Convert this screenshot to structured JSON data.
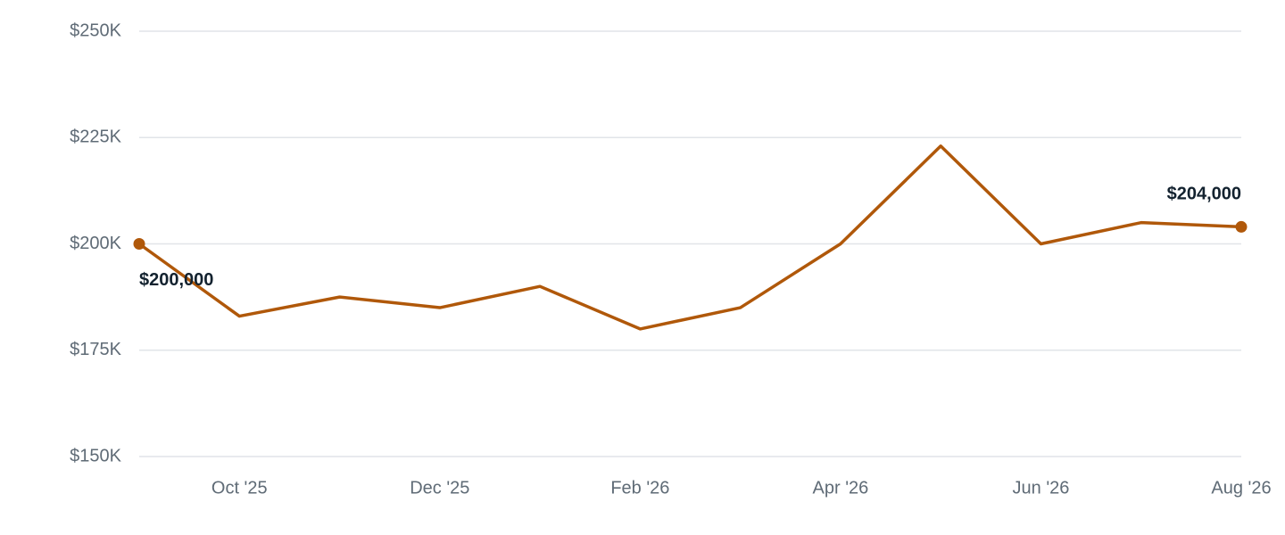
{
  "chart_data": {
    "type": "line",
    "categories": [
      null,
      "Oct '25",
      null,
      "Dec '25",
      null,
      "Feb '26",
      null,
      "Apr '26",
      null,
      "Jun '26",
      null,
      "Aug '26"
    ],
    "series": [
      {
        "color": "#b0580a",
        "values": [
          200000,
          183000,
          187500,
          185000,
          190000,
          180000,
          185000,
          200000,
          223000,
          200000,
          205000,
          204000
        ],
        "value_labels": [
          "$200,000",
          null,
          null,
          null,
          null,
          null,
          null,
          null,
          null,
          null,
          null,
          "$204,000"
        ]
      }
    ],
    "ylim": [
      150000,
      250000
    ],
    "yticks": [
      {
        "value": 150000,
        "label": "$150K"
      },
      {
        "value": 175000,
        "label": "$175K"
      },
      {
        "value": 200000,
        "label": "$200K"
      },
      {
        "value": 225000,
        "label": "$225K"
      },
      {
        "value": 250000,
        "label": "$250K"
      }
    ],
    "grid": true
  }
}
